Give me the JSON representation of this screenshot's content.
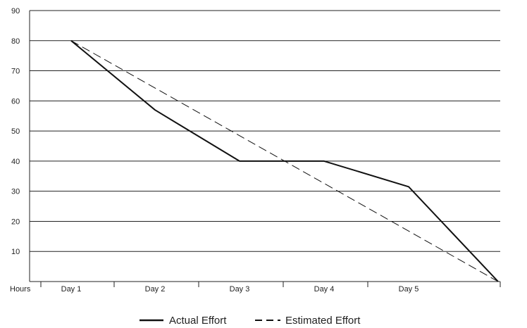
{
  "chart_data": {
    "type": "line",
    "x_axis_label": "Hours",
    "categories": [
      "Day 1",
      "Day 2",
      "Day 3",
      "Day 4",
      "Day 5"
    ],
    "x_index_range": [
      0,
      5
    ],
    "ylim": [
      0,
      90
    ],
    "y_ticks": [
      10,
      20,
      30,
      40,
      50,
      60,
      70,
      80,
      90
    ],
    "grid": true,
    "legend_position": "bottom",
    "series": [
      {
        "name": "Actual Effort",
        "style": "solid",
        "x": [
          0,
          1,
          2,
          3,
          4,
          5
        ],
        "values": [
          80,
          57,
          40,
          40,
          31.5,
          0
        ]
      },
      {
        "name": "Estimated Effort",
        "style": "dashed",
        "x": [
          0,
          5
        ],
        "values": [
          80,
          0
        ]
      }
    ]
  },
  "colors": {
    "line": "#111111",
    "grid": "#222222",
    "background": "#ffffff"
  }
}
